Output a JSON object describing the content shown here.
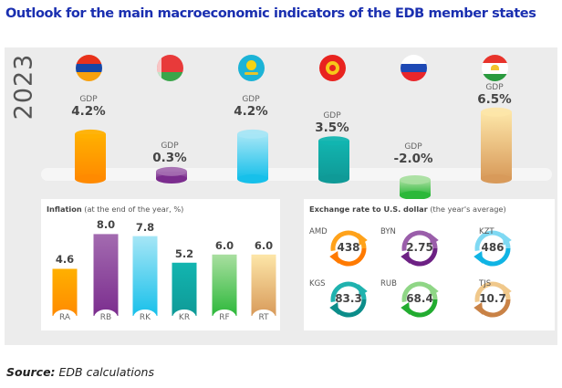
{
  "title": "Outlook for the main macroeconomic indicators of the EDB member states",
  "year": "2023",
  "source": {
    "label": "Source:",
    "text": " EDB calculations"
  },
  "colors": {
    "title": "#1a2fb0",
    "armenia": "#ff8a00",
    "belarus": "#7b2d8e",
    "kazakhstan": "#17c0ea",
    "kyrgyzstan": "#0f9a97",
    "russia": "#2cb83a",
    "tajikistan": "#d89a5a"
  },
  "countries": [
    {
      "code": "RA",
      "flag": "armenia-flag",
      "gdp_label": "GDP",
      "gdp": "4.2%",
      "inflation": "4.6",
      "currency": "AMD",
      "rate": "438"
    },
    {
      "code": "RB",
      "flag": "belarus-flag",
      "gdp_label": "GDP",
      "gdp": "0.3%",
      "inflation": "8.0",
      "currency": "BYN",
      "rate": "2.75"
    },
    {
      "code": "RK",
      "flag": "kazakhstan-flag",
      "gdp_label": "GDP",
      "gdp": "4.2%",
      "inflation": "7.8",
      "currency": "KZT",
      "rate": "486"
    },
    {
      "code": "KR",
      "flag": "kyrgyzstan-flag",
      "gdp_label": "GDP",
      "gdp": "3.5%",
      "inflation": "5.2",
      "currency": "KGS",
      "rate": "83.3"
    },
    {
      "code": "RF",
      "flag": "russia-flag",
      "gdp_label": "GDP",
      "gdp": "-2.0%",
      "inflation": "6.0",
      "currency": "RUB",
      "rate": "68.4"
    },
    {
      "code": "RT",
      "flag": "tajikistan-flag",
      "gdp_label": "GDP",
      "gdp": "6.5%",
      "inflation": "6.0",
      "currency": "TJS",
      "rate": "10.7"
    }
  ],
  "inflation_box": {
    "title_bold": "Inflation",
    "title_rest": " (at the end of the year, %)"
  },
  "exchange_box": {
    "title_bold": "Exchange rate to U.S. dollar",
    "title_rest": " (the year's average)"
  },
  "chart_data": [
    {
      "type": "bar",
      "title": "GDP growth, 2023 (%)",
      "categories": [
        "Armenia",
        "Belarus",
        "Kazakhstan",
        "Kyrgyzstan",
        "Russia",
        "Tajikistan"
      ],
      "values": [
        4.2,
        0.3,
        4.2,
        3.5,
        -2.0,
        6.5
      ],
      "xlabel": "",
      "ylabel": "GDP, %"
    },
    {
      "type": "bar",
      "title": "Inflation (at the end of the year, %)",
      "categories": [
        "RA",
        "RB",
        "RK",
        "KR",
        "RF",
        "RT"
      ],
      "values": [
        4.6,
        8.0,
        7.8,
        5.2,
        6.0,
        6.0
      ],
      "xlabel": "",
      "ylabel": "",
      "ylim": [
        0,
        8.5
      ]
    },
    {
      "type": "table",
      "title": "Exchange rate to U.S. dollar (the year's average)",
      "categories": [
        "AMD",
        "BYN",
        "KZT",
        "KGS",
        "RUB",
        "TJS"
      ],
      "values": [
        438,
        2.75,
        486,
        83.3,
        68.4,
        10.7
      ]
    }
  ]
}
